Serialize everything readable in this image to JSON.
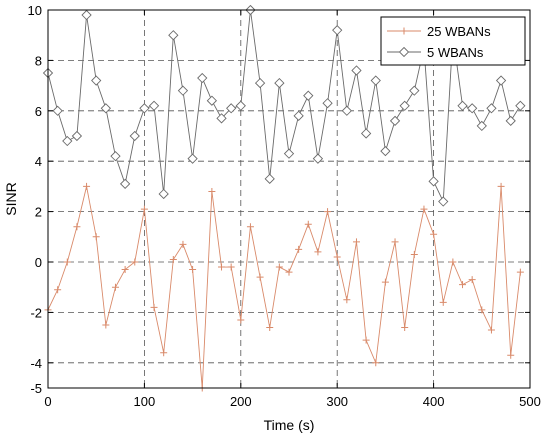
{
  "chart_data": {
    "type": "line",
    "xlabel": "Time (s)",
    "ylabel": "SINR",
    "xlim": [
      0,
      500
    ],
    "ylim": [
      -5,
      10
    ],
    "xticks": [
      0,
      100,
      200,
      300,
      400,
      500
    ],
    "yticks": [
      -5,
      -4,
      -2,
      0,
      2,
      4,
      6,
      8,
      10
    ],
    "grid": true,
    "legend_position": "top-right",
    "series": [
      {
        "name": "25 WBANs",
        "color": "#d98a6a",
        "marker": "plus",
        "x": [
          0,
          10,
          20,
          30,
          40,
          50,
          60,
          70,
          80,
          90,
          100,
          110,
          120,
          130,
          140,
          150,
          160,
          170,
          180,
          190,
          200,
          210,
          220,
          230,
          240,
          250,
          260,
          270,
          280,
          290,
          300,
          310,
          320,
          330,
          340,
          350,
          360,
          370,
          380,
          390,
          400,
          410,
          420,
          430,
          440,
          450,
          460,
          470,
          480,
          490
        ],
        "values": [
          -1.9,
          -1.1,
          0.0,
          1.4,
          3.0,
          1.0,
          -2.5,
          -1.0,
          -0.3,
          0.0,
          2.1,
          -1.8,
          -3.6,
          0.1,
          0.7,
          -0.3,
          -5.0,
          2.8,
          -0.2,
          -0.2,
          -2.3,
          1.4,
          -0.6,
          -2.6,
          -0.2,
          -0.4,
          0.5,
          1.5,
          0.4,
          2.0,
          0.2,
          -1.5,
          0.8,
          -3.1,
          -4.0,
          -0.8,
          0.8,
          -2.6,
          0.3,
          2.1,
          1.1,
          -1.6,
          0.0,
          -0.9,
          -0.7,
          -1.9,
          -2.7,
          3.0,
          -3.7,
          -0.4
        ]
      },
      {
        "name": "5 WBANs",
        "color": "#6a6a6a",
        "marker": "diamond",
        "x": [
          0,
          10,
          20,
          30,
          40,
          50,
          60,
          70,
          80,
          90,
          100,
          110,
          120,
          130,
          140,
          150,
          160,
          170,
          180,
          190,
          200,
          210,
          220,
          230,
          240,
          250,
          260,
          270,
          280,
          290,
          300,
          310,
          320,
          330,
          340,
          350,
          360,
          370,
          380,
          390,
          400,
          410,
          420,
          430,
          440,
          450,
          460,
          470,
          480,
          490
        ],
        "values": [
          7.5,
          6.0,
          4.8,
          5.0,
          9.8,
          7.2,
          6.1,
          4.2,
          3.1,
          5.0,
          6.1,
          6.2,
          2.7,
          9.0,
          6.8,
          4.1,
          7.3,
          6.4,
          5.7,
          6.1,
          6.2,
          10.0,
          7.1,
          3.3,
          7.1,
          4.3,
          5.8,
          6.6,
          4.1,
          6.3,
          9.2,
          6.0,
          7.6,
          5.1,
          7.2,
          4.4,
          5.6,
          6.2,
          6.8,
          8.5,
          3.2,
          2.4,
          9.0,
          6.2,
          6.1,
          5.4,
          6.1,
          7.2,
          5.6,
          6.2
        ]
      }
    ]
  }
}
